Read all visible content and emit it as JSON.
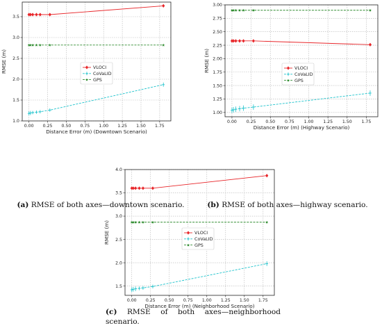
{
  "chart_data": [
    {
      "id": "a",
      "type": "line",
      "xlabel": "Distance Error (m) (Downtown Scenario)",
      "ylabel": "RMSE (m)",
      "xlim": [
        -0.09,
        1.9
      ],
      "ylim": [
        1.0,
        3.85
      ],
      "xticks": [
        0.0,
        0.25,
        0.5,
        0.75,
        1.0,
        1.25,
        1.5,
        1.75
      ],
      "xtick_labels": [
        "0.00",
        "0.25",
        "0.50",
        "0.75",
        "1.00",
        "1.25",
        "1.50",
        "1.75"
      ],
      "yticks": [
        1.0,
        1.5,
        2.0,
        2.5,
        3.0,
        3.5
      ],
      "ytick_labels": [
        "1.0",
        "1.5",
        "2.0",
        "2.5",
        "3.0",
        "3.5"
      ],
      "grid": true,
      "legend_position": "center",
      "x": [
        0.0,
        0.02,
        0.05,
        0.1,
        0.15,
        0.28,
        1.8
      ],
      "series": [
        {
          "name": "VLOCI",
          "color": "#e8262a",
          "style": "solid",
          "marker": "diamond",
          "values": [
            3.55,
            3.55,
            3.55,
            3.55,
            3.55,
            3.55,
            3.76
          ],
          "err": [
            0,
            0,
            0,
            0,
            0,
            0,
            0
          ]
        },
        {
          "name": "CoVaLID",
          "color": "#1ec3cc",
          "style": "dashed",
          "marker": "plus",
          "values": [
            1.18,
            1.19,
            1.2,
            1.21,
            1.22,
            1.26,
            1.87
          ],
          "err": [
            0.05,
            0.05,
            0.04,
            0.04,
            0.04,
            0.04,
            0.05
          ]
        },
        {
          "name": "GPS",
          "color": "#2e8b2e",
          "style": "dashed",
          "marker": "star",
          "values": [
            2.82,
            2.82,
            2.82,
            2.82,
            2.82,
            2.82,
            2.82
          ],
          "err": [
            0,
            0,
            0,
            0,
            0,
            0,
            0
          ]
        }
      ]
    },
    {
      "id": "b",
      "type": "line",
      "xlabel": "Distance Error (m) (Highway Scenario)",
      "ylabel": "RMSE (m)",
      "xlim": [
        -0.09,
        1.9
      ],
      "ylim": [
        0.92,
        3.0
      ],
      "xticks": [
        0.0,
        0.25,
        0.5,
        0.75,
        1.0,
        1.25,
        1.5,
        1.75
      ],
      "xtick_labels": [
        "0.00",
        "0.25",
        "0.50",
        "0.75",
        "1.00",
        "1.25",
        "1.50",
        "1.75"
      ],
      "yticks": [
        1.0,
        1.25,
        1.5,
        1.75,
        2.0,
        2.25,
        2.5,
        2.75,
        3.0
      ],
      "ytick_labels": [
        "1.00",
        "1.25",
        "1.50",
        "1.75",
        "2.00",
        "2.25",
        "2.50",
        "2.75",
        "3.00"
      ],
      "grid": true,
      "legend_position": "center-left",
      "x": [
        0.0,
        0.02,
        0.05,
        0.1,
        0.15,
        0.28,
        1.8
      ],
      "series": [
        {
          "name": "VLOCI",
          "color": "#e8262a",
          "style": "solid",
          "marker": "diamond",
          "values": [
            2.33,
            2.33,
            2.33,
            2.33,
            2.33,
            2.33,
            2.26
          ],
          "err": [
            0,
            0,
            0,
            0,
            0,
            0,
            0
          ]
        },
        {
          "name": "CoVaLID",
          "color": "#1ec3cc",
          "style": "dashed",
          "marker": "plus",
          "values": [
            1.04,
            1.05,
            1.06,
            1.07,
            1.08,
            1.1,
            1.36
          ],
          "err": [
            0.05,
            0.05,
            0.05,
            0.05,
            0.05,
            0.05,
            0.05
          ]
        },
        {
          "name": "GPS",
          "color": "#2e8b2e",
          "style": "dashed",
          "marker": "star",
          "values": [
            2.9,
            2.9,
            2.9,
            2.9,
            2.9,
            2.9,
            2.9
          ],
          "err": [
            0,
            0,
            0,
            0,
            0,
            0,
            0
          ]
        }
      ]
    },
    {
      "id": "c",
      "type": "line",
      "xlabel": "Distance Error (m) (Neighborhood Scenario)",
      "ylabel": "RMSE (m)",
      "xlim": [
        -0.09,
        1.9
      ],
      "ylim": [
        1.3,
        4.0
      ],
      "xticks": [
        0.0,
        0.25,
        0.5,
        0.75,
        1.0,
        1.25,
        1.5,
        1.75
      ],
      "xtick_labels": [
        "0.00",
        "0.25",
        "0.50",
        "0.75",
        "1.00",
        "1.25",
        "1.50",
        "1.75"
      ],
      "yticks": [
        1.5,
        2.0,
        2.5,
        3.0,
        3.5,
        4.0
      ],
      "ytick_labels": [
        "1.5",
        "2.0",
        "2.5",
        "3.0",
        "3.5",
        "4.0"
      ],
      "grid": true,
      "legend_position": "center",
      "x": [
        0.0,
        0.02,
        0.05,
        0.1,
        0.15,
        0.28,
        1.8
      ],
      "series": [
        {
          "name": "VLOCI",
          "color": "#e8262a",
          "style": "solid",
          "marker": "diamond",
          "values": [
            3.6,
            3.6,
            3.6,
            3.6,
            3.6,
            3.6,
            3.87
          ],
          "err": [
            0,
            0,
            0,
            0,
            0,
            0,
            0
          ]
        },
        {
          "name": "CoVaLID",
          "color": "#1ec3cc",
          "style": "dashed",
          "marker": "plus",
          "values": [
            1.42,
            1.43,
            1.44,
            1.45,
            1.46,
            1.49,
            1.98
          ],
          "err": [
            0.05,
            0.05,
            0.05,
            0.04,
            0.04,
            0.04,
            0.05
          ]
        },
        {
          "name": "GPS",
          "color": "#2e8b2e",
          "style": "dashed",
          "marker": "star",
          "values": [
            2.87,
            2.87,
            2.87,
            2.87,
            2.87,
            2.87,
            2.87
          ],
          "err": [
            0,
            0,
            0,
            0,
            0,
            0,
            0
          ]
        }
      ]
    }
  ],
  "captions": {
    "a": {
      "label": "(a)",
      "text": " RMSE of both axes—downtown scenario."
    },
    "b": {
      "label": "(b)",
      "text": " RMSE of both axes—highway scenario."
    },
    "c": {
      "label": "(c)",
      "text": " RMSE of both axes—neighborhood scenario."
    }
  }
}
